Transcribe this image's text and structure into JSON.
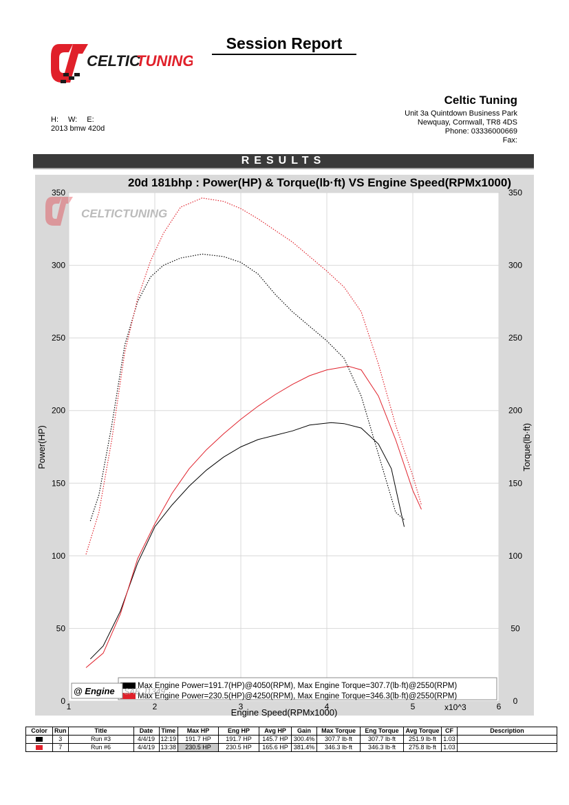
{
  "report": {
    "title": "Session Report"
  },
  "logo": {
    "text": "CELTICTUNING",
    "brand_colors": {
      "red": "#e0202a",
      "black": "#1a1a1a"
    }
  },
  "company": {
    "name": "Celtic Tuning",
    "address1": "Unit 3a Quintdown Business Park",
    "address2": "Newquay, Cornwall, TR8 4DS",
    "phone": "Phone: 03336000669",
    "fax": "Fax:"
  },
  "vehicle": {
    "h": "H:",
    "w": "W:",
    "e": "E:",
    "name": "2013 bmw 420d"
  },
  "results_label": "RESULTS",
  "chart_data": {
    "type": "line",
    "title": "20d 181bhp : Power(HP) & Torque(lb·ft) VS Engine Speed(RPMx1000)",
    "xlabel": "Engine Speed(RPMx1000)",
    "x_multiplier": "x10^3",
    "ylabel": "Power(HP)",
    "y2label": "Torque(lb·ft)",
    "xlim": [
      1,
      6
    ],
    "ylim": [
      0,
      350
    ],
    "y2lim": [
      0,
      350
    ],
    "x_ticks": [
      "1",
      "2",
      "3",
      "4",
      "5",
      "6"
    ],
    "y_ticks": [
      "0",
      "50",
      "100",
      "150",
      "200",
      "250",
      "300",
      "350"
    ],
    "y2_ticks": [
      "0",
      "50",
      "100",
      "150",
      "200",
      "250",
      "300",
      "350"
    ],
    "grid": true,
    "series": [
      {
        "name": "Run #3 Power",
        "axis": "left",
        "color": "#000000",
        "style": "solid",
        "x": [
          1.25,
          1.4,
          1.6,
          1.8,
          2.0,
          2.2,
          2.4,
          2.6,
          2.8,
          3.0,
          3.2,
          3.4,
          3.6,
          3.8,
          4.05,
          4.2,
          4.4,
          4.6,
          4.75,
          4.9
        ],
        "y": [
          29,
          38,
          62,
          95,
          120,
          135,
          148,
          159,
          168,
          175,
          180,
          183,
          186,
          190,
          191.7,
          191,
          188,
          177,
          160,
          120
        ]
      },
      {
        "name": "Run #6 Power",
        "axis": "left",
        "color": "#e0202a",
        "style": "solid",
        "x": [
          1.2,
          1.4,
          1.6,
          1.8,
          2.0,
          2.2,
          2.4,
          2.6,
          2.8,
          3.0,
          3.2,
          3.4,
          3.6,
          3.8,
          4.0,
          4.25,
          4.4,
          4.6,
          4.8,
          5.0,
          5.1
        ],
        "y": [
          23,
          33,
          60,
          98,
          122,
          143,
          160,
          173,
          184,
          194,
          203,
          211,
          218,
          224,
          228,
          230.5,
          228,
          210,
          180,
          145,
          132
        ]
      },
      {
        "name": "Run #3 Torque",
        "axis": "right",
        "color": "#000000",
        "style": "dotted",
        "x": [
          1.25,
          1.35,
          1.5,
          1.65,
          1.8,
          1.95,
          2.1,
          2.3,
          2.55,
          2.8,
          3.0,
          3.2,
          3.4,
          3.6,
          3.8,
          4.0,
          4.2,
          4.4,
          4.6,
          4.8,
          4.9
        ],
        "y": [
          124,
          142,
          190,
          245,
          275,
          292,
          300,
          305,
          307.7,
          306,
          302,
          294,
          280,
          268,
          258,
          248,
          236,
          210,
          170,
          130,
          125
        ]
      },
      {
        "name": "Run #6 Torque",
        "axis": "right",
        "color": "#e0202a",
        "style": "dotted",
        "x": [
          1.2,
          1.35,
          1.5,
          1.65,
          1.8,
          1.95,
          2.1,
          2.3,
          2.55,
          2.8,
          3.0,
          3.2,
          3.4,
          3.6,
          3.8,
          4.0,
          4.2,
          4.4,
          4.6,
          4.8,
          5.0,
          5.1
        ],
        "y": [
          101,
          130,
          180,
          240,
          277,
          303,
          322,
          340,
          346.3,
          344,
          339,
          332,
          324,
          316,
          306,
          296,
          285,
          268,
          232,
          190,
          155,
          135
        ]
      }
    ],
    "legend": {
      "placement": "bottom-left",
      "entries": [
        {
          "color": "#000000",
          "text": "Max Engine Power=191.7(HP)@4050(RPM), Max Engine Torque=307.7(lb·ft)@2550(RPM)"
        },
        {
          "color": "#e0202a",
          "text": "Max Engine Power=230.5(HP)@4250(RPM), Max Engine Torque=346.3(lb·ft)@2550(RPM)"
        }
      ]
    },
    "watermark": {
      "logo_text": "CELTICTUNING",
      "stamp": "@ Engine",
      "stamp_suffix": "SAE J1349"
    }
  },
  "table": {
    "headers": [
      "Color",
      "Run",
      "Title",
      "Date",
      "Time",
      "Max HP",
      "Eng HP",
      "Avg HP",
      "Gain",
      "Max Torque",
      "Eng Torque",
      "Avg Torque",
      "CF",
      "Description"
    ],
    "rows": [
      {
        "color": "#000000",
        "cells": [
          "3",
          "Run #3",
          "4/4/19",
          "12:19",
          "191.7 HP",
          "191.7 HP",
          "145.7 HP",
          "300.4%",
          "307.7 lb·ft",
          "307.7 lb·ft",
          "251.9 lb·ft",
          "1.03",
          ""
        ]
      },
      {
        "color": "#e0202a",
        "cells": [
          "7",
          "Run #6",
          "4/4/19",
          "13:38",
          "230.5 HP",
          "230.5 HP",
          "165.6 HP",
          "381.4%",
          "346.3 lb·ft",
          "346.3 lb·ft",
          "275.8 lb·ft",
          "1.03",
          ""
        ]
      }
    ]
  }
}
